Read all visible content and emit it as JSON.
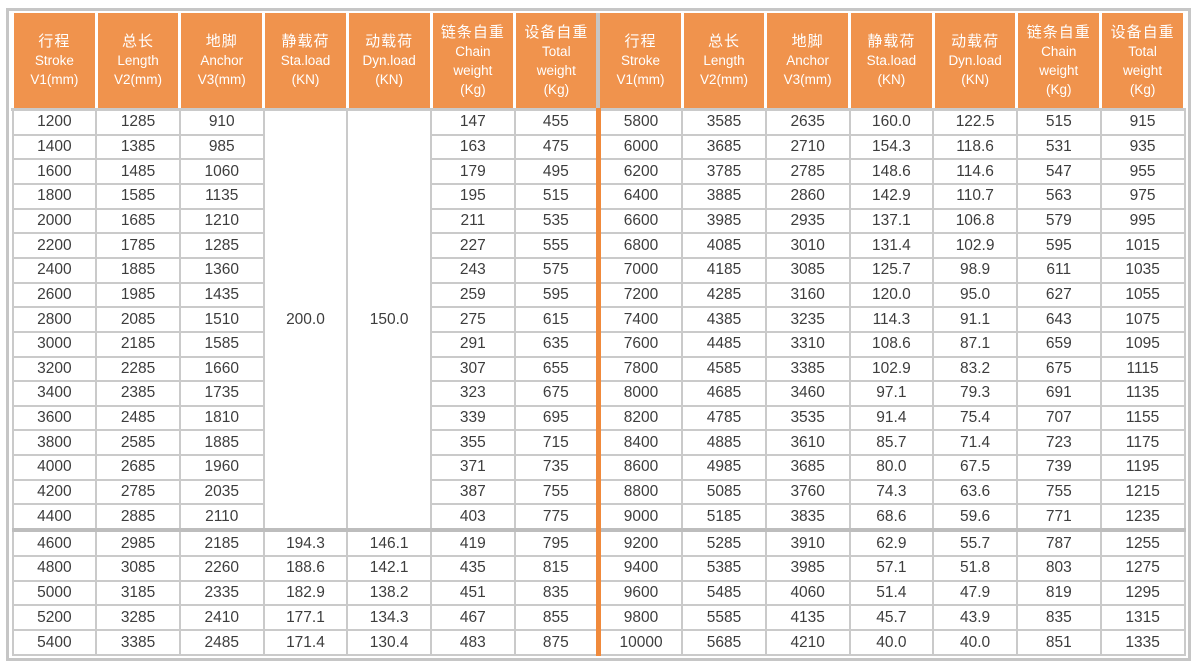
{
  "table": {
    "columns": [
      {
        "key": "stroke",
        "lines": [
          "行程",
          "Stroke",
          "V1(mm)"
        ]
      },
      {
        "key": "length",
        "lines": [
          "总长",
          "Length",
          "V2(mm)"
        ]
      },
      {
        "key": "anchor",
        "lines": [
          "地脚",
          "Anchor",
          "V3(mm)"
        ]
      },
      {
        "key": "sta-load",
        "lines": [
          "静载荷",
          "Sta.load",
          "(KN)"
        ]
      },
      {
        "key": "dyn-load",
        "lines": [
          "动载荷",
          "Dyn.load",
          "(KN)"
        ]
      },
      {
        "key": "chain-weight",
        "lines": [
          "链条自重",
          "Chain",
          "weight",
          "(Kg)"
        ]
      },
      {
        "key": "total-weight",
        "lines": [
          "设备自重",
          "Total",
          "weight",
          "(Kg)"
        ]
      }
    ],
    "left_merged": {
      "sta_load": "200.0",
      "dyn_load": "150.0",
      "row_span": 17
    },
    "left_rows": [
      [
        "1200",
        "1285",
        "910",
        null,
        null,
        "147",
        "455"
      ],
      [
        "1400",
        "1385",
        "985",
        null,
        null,
        "163",
        "475"
      ],
      [
        "1600",
        "1485",
        "1060",
        null,
        null,
        "179",
        "495"
      ],
      [
        "1800",
        "1585",
        "1135",
        null,
        null,
        "195",
        "515"
      ],
      [
        "2000",
        "1685",
        "1210",
        null,
        null,
        "211",
        "535"
      ],
      [
        "2200",
        "1785",
        "1285",
        null,
        null,
        "227",
        "555"
      ],
      [
        "2400",
        "1885",
        "1360",
        null,
        null,
        "243",
        "575"
      ],
      [
        "2600",
        "1985",
        "1435",
        null,
        null,
        "259",
        "595"
      ],
      [
        "2800",
        "2085",
        "1510",
        null,
        null,
        "275",
        "615"
      ],
      [
        "3000",
        "2185",
        "1585",
        null,
        null,
        "291",
        "635"
      ],
      [
        "3200",
        "2285",
        "1660",
        null,
        null,
        "307",
        "655"
      ],
      [
        "3400",
        "2385",
        "1735",
        null,
        null,
        "323",
        "675"
      ],
      [
        "3600",
        "2485",
        "1810",
        null,
        null,
        "339",
        "695"
      ],
      [
        "3800",
        "2585",
        "1885",
        null,
        null,
        "355",
        "715"
      ],
      [
        "4000",
        "2685",
        "1960",
        null,
        null,
        "371",
        "735"
      ],
      [
        "4200",
        "2785",
        "2035",
        null,
        null,
        "387",
        "755"
      ],
      [
        "4400",
        "2885",
        "2110",
        null,
        null,
        "403",
        "775"
      ],
      [
        "4600",
        "2985",
        "2185",
        "194.3",
        "146.1",
        "419",
        "795"
      ],
      [
        "4800",
        "3085",
        "2260",
        "188.6",
        "142.1",
        "435",
        "815"
      ],
      [
        "5000",
        "3185",
        "2335",
        "182.9",
        "138.2",
        "451",
        "835"
      ],
      [
        "5200",
        "3285",
        "2410",
        "177.1",
        "134.3",
        "467",
        "855"
      ],
      [
        "5400",
        "3385",
        "2485",
        "171.4",
        "130.4",
        "483",
        "875"
      ]
    ],
    "right_rows": [
      [
        "5800",
        "3585",
        "2635",
        "160.0",
        "122.5",
        "515",
        "915"
      ],
      [
        "6000",
        "3685",
        "2710",
        "154.3",
        "118.6",
        "531",
        "935"
      ],
      [
        "6200",
        "3785",
        "2785",
        "148.6",
        "114.6",
        "547",
        "955"
      ],
      [
        "6400",
        "3885",
        "2860",
        "142.9",
        "110.7",
        "563",
        "975"
      ],
      [
        "6600",
        "3985",
        "2935",
        "137.1",
        "106.8",
        "579",
        "995"
      ],
      [
        "6800",
        "4085",
        "3010",
        "131.4",
        "102.9",
        "595",
        "1015"
      ],
      [
        "7000",
        "4185",
        "3085",
        "125.7",
        "98.9",
        "611",
        "1035"
      ],
      [
        "7200",
        "4285",
        "3160",
        "120.0",
        "95.0",
        "627",
        "1055"
      ],
      [
        "7400",
        "4385",
        "3235",
        "114.3",
        "91.1",
        "643",
        "1075"
      ],
      [
        "7600",
        "4485",
        "3310",
        "108.6",
        "87.1",
        "659",
        "1095"
      ],
      [
        "7800",
        "4585",
        "3385",
        "102.9",
        "83.2",
        "675",
        "1115"
      ],
      [
        "8000",
        "4685",
        "3460",
        "97.1",
        "79.3",
        "691",
        "1135"
      ],
      [
        "8200",
        "4785",
        "3535",
        "91.4",
        "75.4",
        "707",
        "1155"
      ],
      [
        "8400",
        "4885",
        "3610",
        "85.7",
        "71.4",
        "723",
        "1175"
      ],
      [
        "8600",
        "4985",
        "3685",
        "80.0",
        "67.5",
        "739",
        "1195"
      ],
      [
        "8800",
        "5085",
        "3760",
        "74.3",
        "63.6",
        "755",
        "1215"
      ],
      [
        "9000",
        "5185",
        "3835",
        "68.6",
        "59.6",
        "771",
        "1235"
      ],
      [
        "9200",
        "5285",
        "3910",
        "62.9",
        "55.7",
        "787",
        "1255"
      ],
      [
        "9400",
        "5385",
        "3985",
        "57.1",
        "51.8",
        "803",
        "1275"
      ],
      [
        "9600",
        "5485",
        "4060",
        "51.4",
        "47.9",
        "819",
        "1295"
      ],
      [
        "9800",
        "5585",
        "4135",
        "45.7",
        "43.9",
        "835",
        "1315"
      ],
      [
        "10000",
        "5685",
        "4210",
        "40.0",
        "40.0",
        "851",
        "1335"
      ]
    ],
    "section_start_row_index": 17,
    "colors": {
      "header_bg": "#F0934D",
      "header_text": "#FFFFFF",
      "grid": "#CACACA",
      "outer_border": "#C6C6C6",
      "center_divider": "#F08A3C",
      "cell_text": "#3D3D3D",
      "cell_bg": "#FFFFFF",
      "section_line": "#BDBDBD"
    }
  }
}
